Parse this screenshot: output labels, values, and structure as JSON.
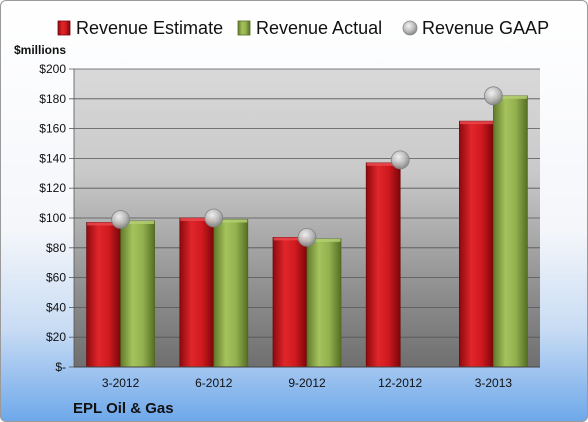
{
  "company": "EPL Oil & Gas",
  "unit_label": "$millions",
  "colors": {
    "estimate": "#c8161b",
    "actual": "#8fae4a",
    "gaap": "#b8b8b8"
  },
  "chart_data": {
    "type": "bar",
    "categories": [
      "3-2012",
      "6-2012",
      "9-2012",
      "12-2012",
      "3-2013"
    ],
    "series": [
      {
        "name": "Revenue Estimate",
        "kind": "bar",
        "values": [
          97,
          100,
          87,
          137,
          165
        ]
      },
      {
        "name": "Revenue Actual",
        "kind": "bar",
        "values": [
          98,
          99,
          86,
          null,
          182
        ]
      },
      {
        "name": "Revenue GAAP",
        "kind": "marker",
        "values": [
          99,
          100,
          87,
          139,
          182
        ]
      }
    ],
    "ylabel": "$millions",
    "ylim": [
      0,
      200
    ],
    "ytick_labels": [
      "$-",
      "$20",
      "$40",
      "$60",
      "$80",
      "$100",
      "$120",
      "$140",
      "$160",
      "$180",
      "$200"
    ],
    "legend_position": "top",
    "grid": true
  }
}
